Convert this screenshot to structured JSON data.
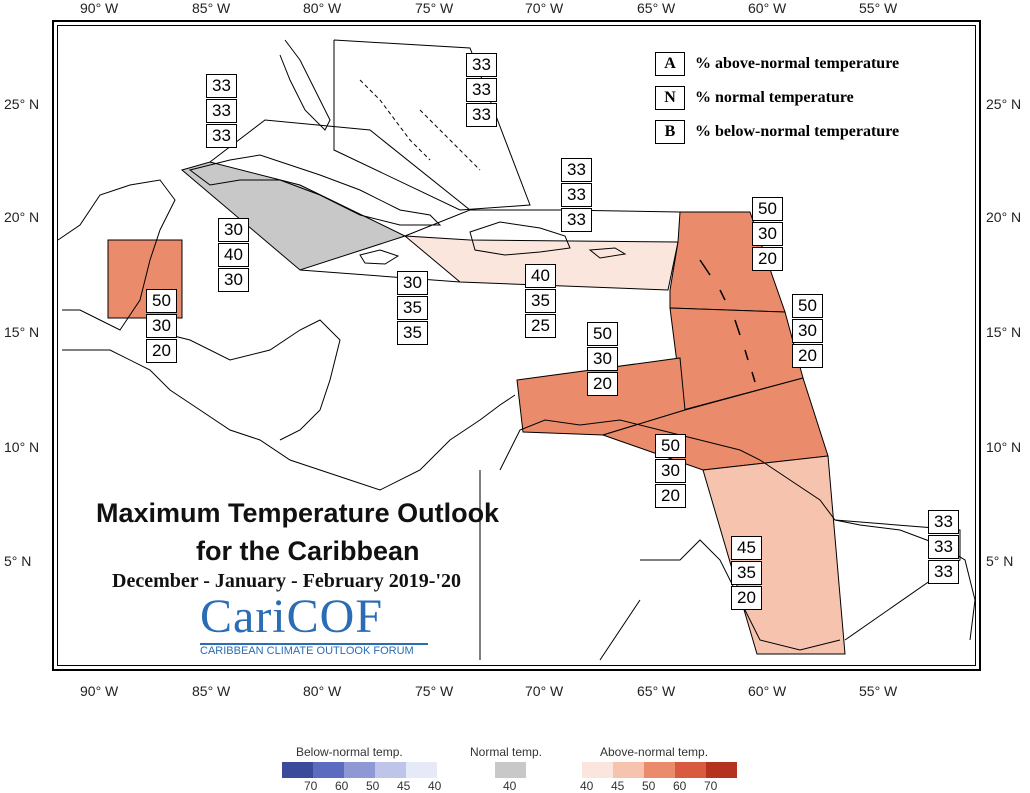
{
  "axis": {
    "top_lon": [
      "90° W",
      "85° W",
      "80° W",
      "75° W",
      "70° W",
      "65° W",
      "60° W",
      "55° W"
    ],
    "bottom_lon": [
      "90° W",
      "85° W",
      "80° W",
      "75° W",
      "70° W",
      "65° W",
      "60° W",
      "55° W"
    ],
    "left_lat": [
      "25° N",
      "20° N",
      "15° N",
      "10° N",
      "5° N"
    ],
    "right_lat": [
      "25° N",
      "20° N",
      "15° N",
      "10° N",
      "5° N"
    ]
  },
  "legend": {
    "a": {
      "key": "A",
      "text": "% above-normal temperature"
    },
    "n": {
      "key": "N",
      "text": "% normal temperature"
    },
    "b": {
      "key": "B",
      "text": "% below-normal temperature"
    }
  },
  "title": {
    "line1": "Maximum Temperature Outlook",
    "line2": "for the Caribbean",
    "line3": "December - January - February 2019-'20"
  },
  "logo": {
    "name": "CariCOF",
    "sub": "CARIBBEAN CLIMATE OUTLOOK FORUM"
  },
  "regions": [
    {
      "name": "bahamas-north",
      "a": "33",
      "n": "33",
      "b": "33"
    },
    {
      "name": "cuba",
      "a": "33",
      "n": "33",
      "b": "33"
    },
    {
      "name": "western-cuba-cayman",
      "a": "30",
      "n": "40",
      "b": "30"
    },
    {
      "name": "belize",
      "a": "50",
      "n": "30",
      "b": "20"
    },
    {
      "name": "jamaica",
      "a": "30",
      "n": "35",
      "b": "35"
    },
    {
      "name": "hispaniola-pr",
      "a": "40",
      "n": "35",
      "b": "25"
    },
    {
      "name": "turks-caicos",
      "a": "33",
      "n": "33",
      "b": "33"
    },
    {
      "name": "leeward-islands",
      "a": "50",
      "n": "30",
      "b": "20"
    },
    {
      "name": "windward-islands",
      "a": "50",
      "n": "30",
      "b": "20"
    },
    {
      "name": "abc-islands",
      "a": "50",
      "n": "30",
      "b": "20"
    },
    {
      "name": "trinidad-tobago",
      "a": "50",
      "n": "30",
      "b": "20"
    },
    {
      "name": "guyana",
      "a": "45",
      "n": "35",
      "b": "20"
    },
    {
      "name": "suriname-fg",
      "a": "33",
      "n": "33",
      "b": "33"
    }
  ],
  "colorbar": {
    "below_label": "Below-normal temp.",
    "normal_label": "Normal temp.",
    "above_label": "Above-normal temp.",
    "below_ticks": [
      "70",
      "60",
      "50",
      "45",
      "40"
    ],
    "normal_ticks": [
      "40"
    ],
    "above_ticks": [
      "40",
      "45",
      "50",
      "60",
      "70"
    ],
    "below_colors": [
      "#3b4a9a",
      "#5b6cc0",
      "#8e98d4",
      "#bfc5e8",
      "#e6e9f7"
    ],
    "normal_color": "#c8c8c8",
    "above_colors": [
      "#fbe6dd",
      "#f6c4ae",
      "#ea8c6c",
      "#d85a3f",
      "#b5321e"
    ]
  }
}
